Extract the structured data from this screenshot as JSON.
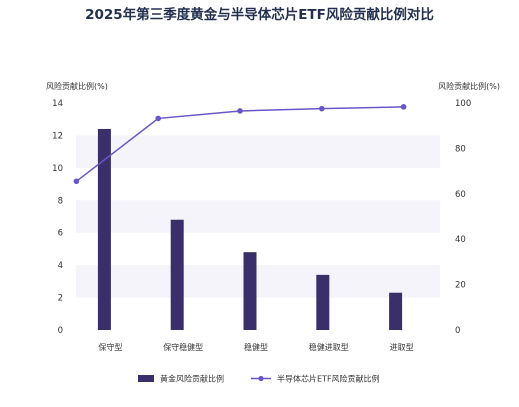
{
  "chart_data": {
    "type": "bar+line",
    "title": "2025年第三季度黄金与半导体芯片ETF风险贡献比例对比",
    "categories": [
      "保守型",
      "保守稳健型",
      "稳健型",
      "稳健进取型",
      "进取型"
    ],
    "series": [
      {
        "name": "黄金风险贡献比例",
        "type": "bar",
        "axis": "left",
        "color": "#3b2f6b",
        "values": [
          12.4,
          6.8,
          4.8,
          3.4,
          2.3
        ]
      },
      {
        "name": "半导体芯片ETF风险贡献比例",
        "type": "line",
        "axis": "right",
        "color": "#6a55c8",
        "values": [
          65.5,
          93.2,
          96.5,
          97.5,
          98.3
        ]
      }
    ],
    "y_left": {
      "label": "风险贡献比例(%)",
      "range": [
        0,
        14
      ],
      "ticks": [
        0,
        2,
        4,
        6,
        8,
        10,
        12,
        14
      ]
    },
    "y_right": {
      "label": "风险贡献比例(%)",
      "range": [
        0,
        100
      ],
      "ticks": [
        0,
        20,
        40,
        60,
        80,
        100
      ]
    },
    "grid": "alternating horizontal bands",
    "legend_position": "bottom"
  }
}
